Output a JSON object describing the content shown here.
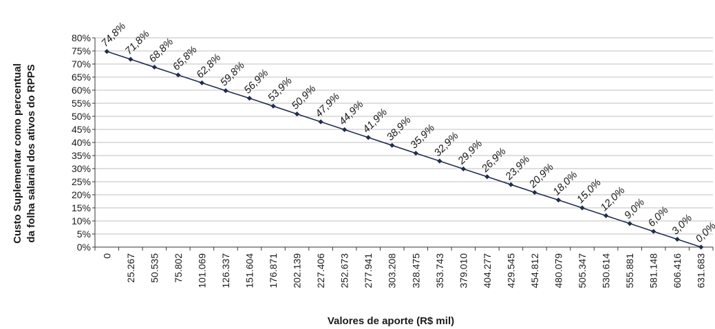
{
  "chart_data": {
    "type": "line",
    "title": "",
    "xlabel": "Valores de aporte (R$ mil)",
    "ylabel_lines": [
      "Custo Suplementar como percentual",
      "da folha salarial dos ativos do RPPS"
    ],
    "categories": [
      "0",
      "25.267",
      "50.535",
      "75.802",
      "101.069",
      "126.337",
      "151.604",
      "176.871",
      "202.139",
      "227.406",
      "252.673",
      "277.941",
      "303.208",
      "328.475",
      "353.743",
      "379.010",
      "404.277",
      "429.545",
      "454.812",
      "480.079",
      "505.347",
      "530.614",
      "555.881",
      "581.148",
      "606.416",
      "631.683"
    ],
    "series": [
      {
        "values": [
          74.8,
          71.8,
          68.8,
          65.8,
          62.8,
          59.8,
          56.9,
          53.9,
          50.9,
          47.9,
          44.9,
          41.9,
          38.9,
          35.9,
          32.9,
          29.9,
          26.9,
          23.9,
          20.9,
          18.0,
          15.0,
          12.0,
          9.0,
          6.0,
          3.0,
          0.0
        ],
        "data_labels": [
          "74,8%",
          "71,8%",
          "68,8%",
          "65,8%",
          "62,8%",
          "59,8%",
          "56,9%",
          "53,9%",
          "50,9%",
          "47,9%",
          "44,9%",
          "41,9%",
          "38,9%",
          "35,9%",
          "32,9%",
          "29,9%",
          "26,9%",
          "23,9%",
          "20,9%",
          "18,0%",
          "15,0%",
          "12,0%",
          "9,0%",
          "6,0%",
          "3,0%",
          "0,0%"
        ]
      }
    ],
    "yticks": [
      "0%",
      "5%",
      "10%",
      "15%",
      "20%",
      "25%",
      "30%",
      "35%",
      "40%",
      "45%",
      "50%",
      "55%",
      "60%",
      "65%",
      "70%",
      "75%",
      "80%"
    ],
    "ylim": [
      0,
      80
    ],
    "grid": true,
    "line_color": "#1f2d4d",
    "grid_color": "#bfbfbf"
  }
}
